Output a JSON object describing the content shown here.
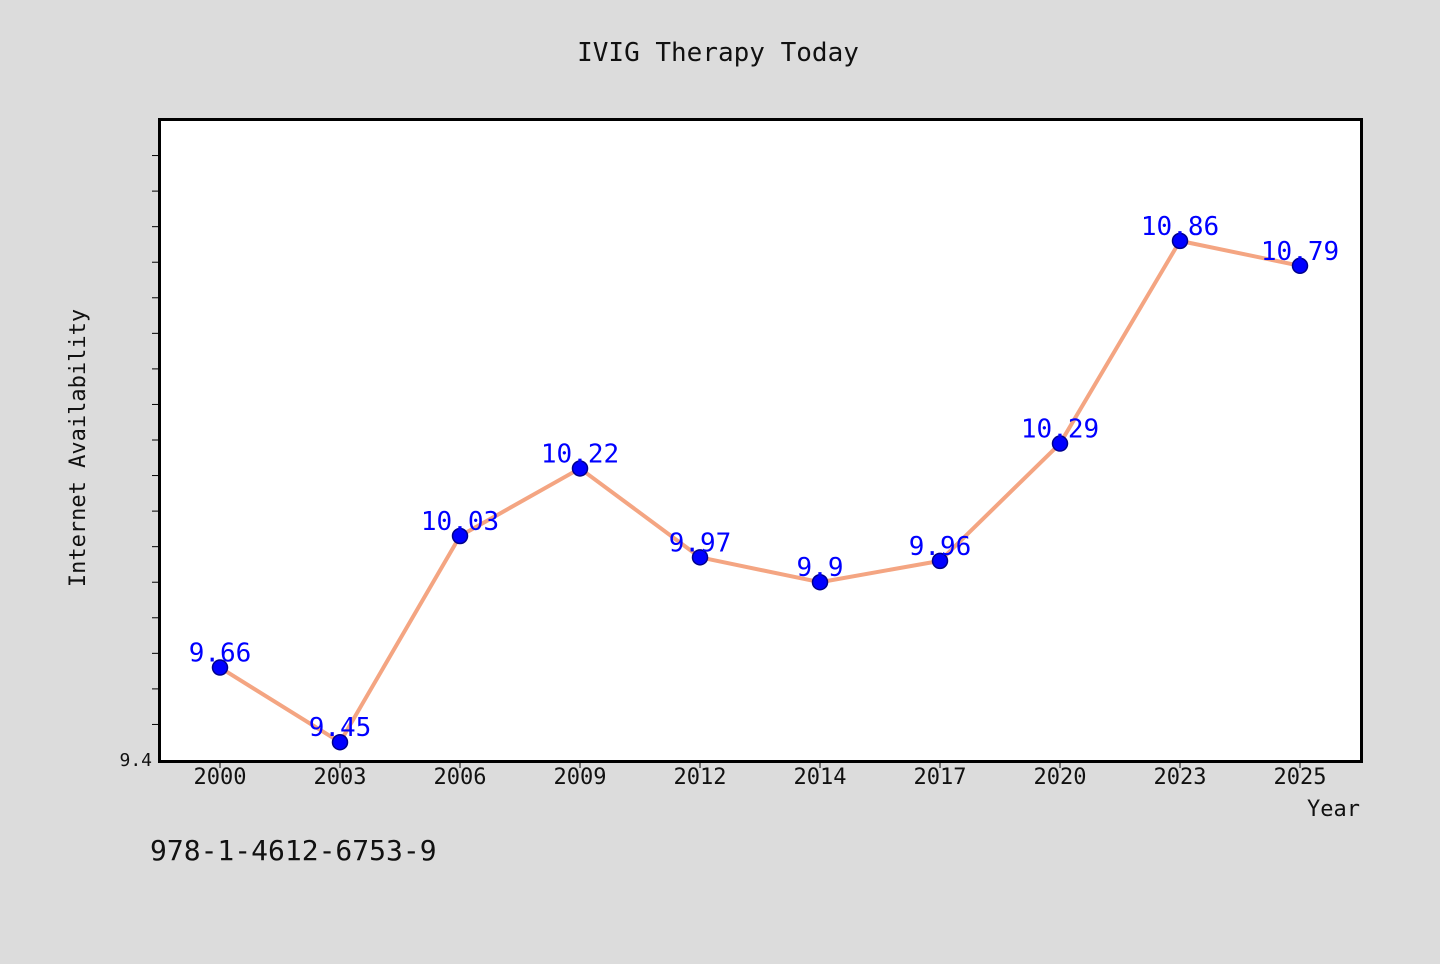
{
  "footer": {
    "code": "978-1-4612-6753-9"
  },
  "chart_data": {
    "type": "line",
    "title": "IVIG Therapy Today",
    "xlabel": "Year",
    "ylabel": "Internet Availability",
    "categories": [
      "2000",
      "2003",
      "2006",
      "2009",
      "2012",
      "2014",
      "2017",
      "2020",
      "2023",
      "2025"
    ],
    "series": [
      {
        "values": [
          9.66,
          9.45,
          10.03,
          10.22,
          9.97,
          9.9,
          9.96,
          10.29,
          10.86,
          10.79
        ]
      }
    ],
    "data_labels": [
      "9.66",
      "9.45",
      "10.03",
      "10.22",
      "9.97",
      "9.9",
      "9.96",
      "10.29",
      "10.86",
      "10.79"
    ],
    "y_tick_labels": [
      "9.4"
    ],
    "ylim": [
      9.4,
      11.2
    ],
    "grid": false,
    "legend": "none",
    "colors": {
      "line": "#f4a582",
      "marker": "#0000ff",
      "marker_edge": "#00008b",
      "data_label": "#0000ff",
      "plot_bg": "#ffffff",
      "figure_bg": "#dcdcdc"
    }
  }
}
